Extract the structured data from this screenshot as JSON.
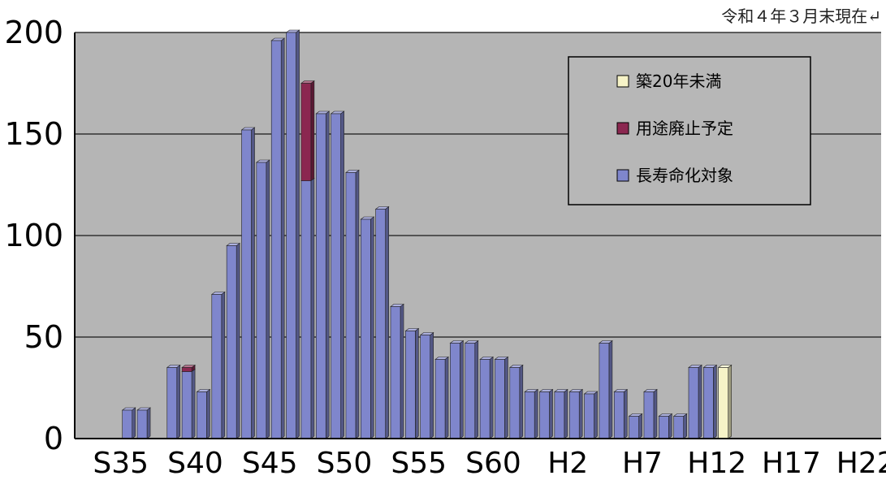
{
  "note": "令和４年３月末現在↵",
  "chart_data": {
    "type": "bar",
    "stacked": true,
    "ylim": [
      0,
      200
    ],
    "y_ticks": [
      0,
      50,
      100,
      150,
      200
    ],
    "grid": true,
    "legend_position": "top-right",
    "x_labels": [
      "S35",
      "S40",
      "S45",
      "S50",
      "S55",
      "S60",
      "H2",
      "H7",
      "H12",
      "H17",
      "H22"
    ],
    "colors": {
      "plot_bg": "#b5b5b5",
      "grid": "#333333",
      "legend_bg": "#b7b7b7",
      "new": "#f6f3c7",
      "abolish": "#8b2750",
      "extend": "#7f86cc"
    },
    "series": [
      {
        "name": "築20年未満",
        "color_key": "new",
        "values": [
          0,
          0,
          0,
          0,
          0,
          0,
          0,
          0,
          0,
          0,
          0,
          0,
          0,
          0,
          0,
          0,
          0,
          0,
          0,
          0,
          0,
          0,
          0,
          0,
          0,
          0,
          0,
          0,
          0,
          0,
          0,
          0,
          0,
          0,
          0,
          0,
          0,
          0,
          0,
          0,
          0,
          0,
          35,
          0,
          0,
          0,
          0,
          0,
          0,
          0,
          0,
          0,
          0
        ]
      },
      {
        "name": "用途廃止予定",
        "color_key": "abolish",
        "values": [
          0,
          0,
          0,
          0,
          0,
          0,
          2,
          0,
          0,
          0,
          0,
          0,
          0,
          0,
          48,
          0,
          0,
          0,
          0,
          0,
          0,
          0,
          0,
          0,
          0,
          0,
          0,
          0,
          0,
          0,
          0,
          0,
          0,
          0,
          0,
          0,
          0,
          0,
          0,
          0,
          0,
          0,
          0,
          0,
          0,
          0,
          0,
          0,
          0,
          0,
          0,
          0,
          0
        ]
      },
      {
        "name": "長寿命化対象",
        "color_key": "extend",
        "values": [
          0,
          0,
          14,
          14,
          0,
          35,
          33,
          23,
          71,
          95,
          152,
          136,
          196,
          200,
          127,
          160,
          160,
          131,
          108,
          113,
          65,
          53,
          51,
          39,
          47,
          47,
          39,
          39,
          35,
          23,
          23,
          23,
          23,
          22,
          47,
          23,
          11,
          23,
          11,
          11,
          35,
          35,
          0,
          0,
          0,
          0,
          0,
          0,
          0,
          0,
          0,
          0,
          0
        ]
      }
    ]
  }
}
